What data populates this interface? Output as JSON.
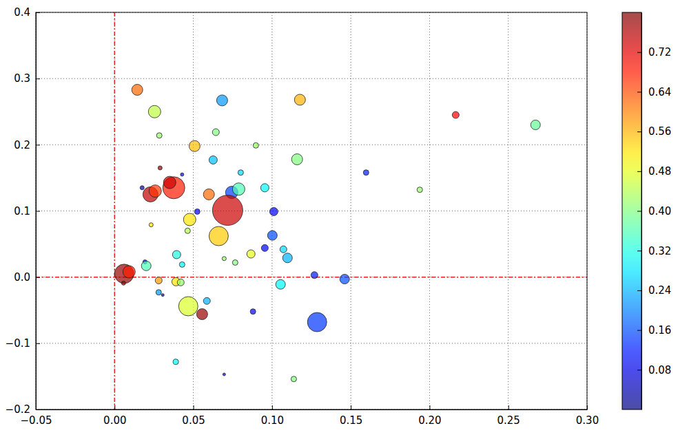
{
  "chart_data": {
    "type": "scatter",
    "marker": "circle",
    "grid": true,
    "xlim": [
      -0.05,
      0.3
    ],
    "ylim": [
      -0.2,
      0.4
    ],
    "xticks": [
      {
        "value": -0.05,
        "label": "−0.05"
      },
      {
        "value": 0.0,
        "label": "0.00"
      },
      {
        "value": 0.05,
        "label": "0.05"
      },
      {
        "value": 0.1,
        "label": "0.10"
      },
      {
        "value": 0.15,
        "label": "0.15"
      },
      {
        "value": 0.2,
        "label": "0.20"
      },
      {
        "value": 0.25,
        "label": "0.25"
      },
      {
        "value": 0.3,
        "label": "0.30"
      }
    ],
    "yticks": [
      {
        "value": -0.2,
        "label": "−0.2"
      },
      {
        "value": -0.1,
        "label": "−0.1"
      },
      {
        "value": 0.0,
        "label": "0.0"
      },
      {
        "value": 0.1,
        "label": "0.1"
      },
      {
        "value": 0.2,
        "label": "0.2"
      },
      {
        "value": 0.3,
        "label": "0.3"
      },
      {
        "value": 0.4,
        "label": "0.4"
      }
    ],
    "vlines": [
      0
    ],
    "hlines": [
      0
    ],
    "x": [
      0.0144,
      0.0254,
      0.0284,
      0.0289,
      0.0429,
      0.0175,
      0.0228,
      0.0258,
      0.0376,
      0.035,
      0.0232,
      0.0508,
      0.0643,
      0.0683,
      0.0626,
      0.0599,
      0.0744,
      0.0788,
      0.0718,
      0.0525,
      0.0477,
      0.0464,
      0.0661,
      0.0801,
      0.0897,
      0.1177,
      0.1159,
      0.0954,
      0.1011,
      0.1002,
      0.0954,
      0.1072,
      0.1098,
      0.0866,
      0.0766,
      0.0696,
      0.0394,
      0.0429,
      0.0193,
      0.0201,
      0.0061,
      0.0092,
      0.0057,
      0.028,
      0.039,
      0.042,
      0.028,
      0.0306,
      0.0468,
      0.0556,
      0.0586,
      0.0879,
      0.1054,
      0.1269,
      0.1461,
      0.1286,
      0.1597,
      0.1938,
      0.2166,
      0.2673,
      0.0389,
      0.0696,
      0.1138
    ],
    "values": [
      0.283,
      0.25,
      0.214,
      0.165,
      0.155,
      0.135,
      0.125,
      0.13,
      0.135,
      0.143,
      0.079,
      0.198,
      0.219,
      0.267,
      0.177,
      0.125,
      0.128,
      0.133,
      0.101,
      0.099,
      0.087,
      0.07,
      0.062,
      0.158,
      0.199,
      0.268,
      0.178,
      0.135,
      0.099,
      0.063,
      0.044,
      0.042,
      0.029,
      0.035,
      0.022,
      0.028,
      0.034,
      0.019,
      0.023,
      0.017,
      0.005,
      0.008,
      -0.009,
      -0.005,
      -0.007,
      -0.008,
      -0.023,
      -0.027,
      -0.044,
      -0.056,
      -0.036,
      -0.052,
      -0.011,
      0.003,
      -0.003,
      -0.068,
      0.158,
      0.132,
      0.245,
      0.23,
      -0.128,
      -0.147,
      -0.154
    ],
    "sizes": [
      64,
      81,
      16,
      9,
      6,
      9,
      121,
      81,
      256,
      81,
      9,
      64,
      25,
      64,
      36,
      64,
      81,
      81,
      484,
      16,
      81,
      16,
      196,
      16,
      16,
      64,
      64,
      36,
      36,
      49,
      25,
      25,
      49,
      36,
      16,
      9,
      36,
      16,
      9,
      49,
      196,
      81,
      9,
      25,
      36,
      25,
      16,
      4,
      196,
      64,
      25,
      16,
      49,
      25,
      49,
      196,
      16,
      16,
      25,
      49,
      16,
      4,
      16
    ],
    "color_values": [
      0.62,
      0.45,
      0.42,
      0.78,
      0.1,
      0.05,
      0.75,
      0.66,
      0.68,
      0.74,
      0.52,
      0.55,
      0.4,
      0.22,
      0.25,
      0.62,
      0.15,
      0.36,
      0.74,
      0.1,
      0.52,
      0.44,
      0.54,
      0.27,
      0.42,
      0.56,
      0.4,
      0.3,
      0.1,
      0.16,
      0.1,
      0.27,
      0.24,
      0.48,
      0.4,
      0.42,
      0.32,
      0.3,
      0.1,
      0.36,
      0.78,
      0.68,
      0.78,
      0.58,
      0.52,
      0.42,
      0.22,
      0.05,
      0.47,
      0.78,
      0.24,
      0.1,
      0.3,
      0.12,
      0.16,
      0.14,
      0.12,
      0.42,
      0.7,
      0.38,
      0.3,
      0.1,
      0.4
    ],
    "colorbar": {
      "range": [
        0.0,
        0.8
      ],
      "ticks": [
        {
          "value": 0.08,
          "label": "0.08"
        },
        {
          "value": 0.16,
          "label": "0.16"
        },
        {
          "value": 0.24,
          "label": "0.24"
        },
        {
          "value": 0.32,
          "label": "0.32"
        },
        {
          "value": 0.4,
          "label": "0.40"
        },
        {
          "value": 0.48,
          "label": "0.48"
        },
        {
          "value": 0.56,
          "label": "0.56"
        },
        {
          "value": 0.64,
          "label": "0.64"
        },
        {
          "value": 0.72,
          "label": "0.72"
        }
      ]
    }
  }
}
